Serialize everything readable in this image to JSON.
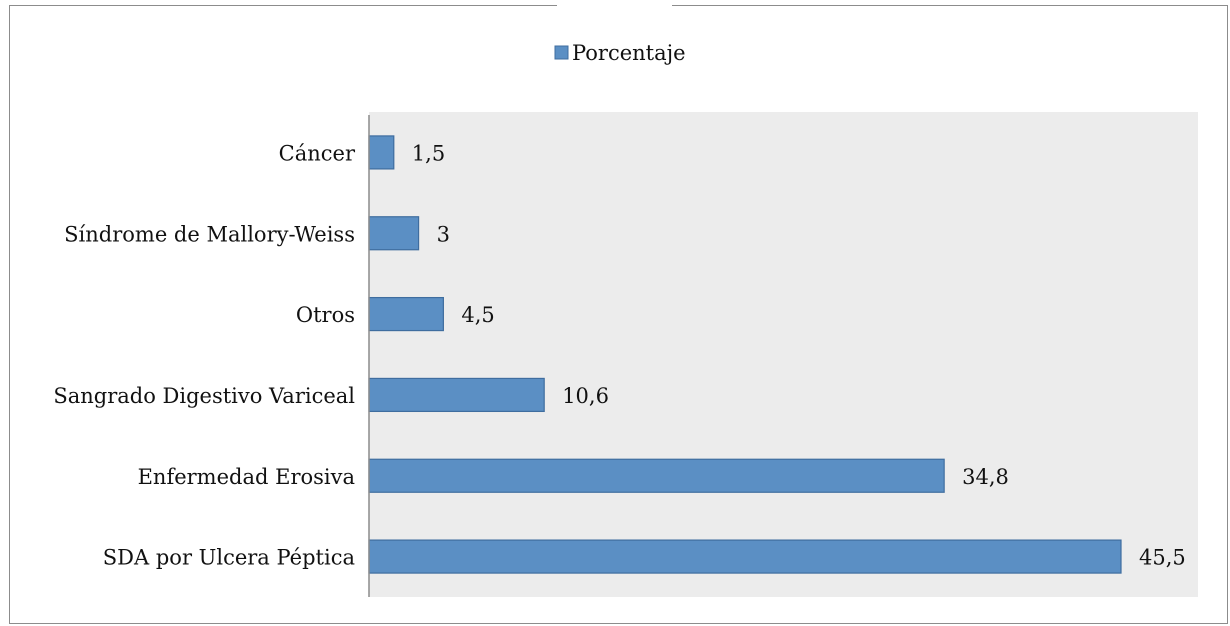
{
  "chart_data": {
    "type": "bar",
    "orientation": "horizontal",
    "title": "",
    "xlabel": "",
    "ylabel": "",
    "categories": [
      "SDA por Ulcera Péptica",
      "Enfermedad Erosiva",
      "Sangrado Digestivo Variceal",
      "Otros",
      "Síndrome de Mallory-Weiss",
      "Cáncer"
    ],
    "series": [
      {
        "name": "Porcentaje",
        "values": [
          45.5,
          34.8,
          10.6,
          4.5,
          3,
          1.5
        ],
        "value_labels": [
          "45,5",
          "34,8",
          "10,6",
          "4,5",
          "3",
          "1,5"
        ],
        "color": "#5b8fc4"
      }
    ],
    "xlim": [
      0,
      50
    ],
    "grid": false,
    "legend": {
      "position": "top-center"
    },
    "plot_background": "#ececec",
    "bar_border_color": "#3f6d9f"
  }
}
